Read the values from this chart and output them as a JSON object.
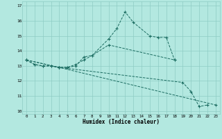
{
  "xlabel": "Humidex (Indice chaleur)",
  "bg_color": "#b3e8e0",
  "grid_color": "#8eccc4",
  "line_color": "#1a6b60",
  "ylim": [
    9.8,
    17.3
  ],
  "xlim": [
    -0.5,
    23.5
  ],
  "line1_x": [
    0,
    1,
    2,
    3,
    4,
    5,
    6,
    7,
    8,
    10,
    11,
    12,
    13,
    15,
    16,
    17,
    18
  ],
  "line1_y": [
    13.4,
    13.1,
    13.0,
    13.0,
    12.9,
    12.9,
    13.0,
    13.6,
    13.7,
    14.8,
    15.5,
    16.6,
    15.9,
    15.0,
    14.9,
    14.9,
    13.4
  ],
  "line2_x": [
    0,
    1,
    2,
    3,
    4,
    5,
    6,
    7,
    8,
    10,
    18
  ],
  "line2_y": [
    13.4,
    13.1,
    13.0,
    13.0,
    12.9,
    12.9,
    13.1,
    13.4,
    13.7,
    14.4,
    13.4
  ],
  "line3_x": [
    0,
    4,
    19,
    20,
    21,
    22
  ],
  "line3_y": [
    13.4,
    12.9,
    11.9,
    11.3,
    10.3,
    10.4
  ],
  "line4_x": [
    0,
    4,
    23
  ],
  "line4_y": [
    13.4,
    12.9,
    10.4
  ],
  "yticks": [
    10,
    11,
    12,
    13,
    14,
    15,
    16,
    17
  ],
  "xticks": [
    0,
    1,
    2,
    3,
    4,
    5,
    6,
    7,
    8,
    9,
    10,
    11,
    12,
    13,
    14,
    15,
    16,
    17,
    18,
    19,
    20,
    21,
    22,
    23
  ]
}
